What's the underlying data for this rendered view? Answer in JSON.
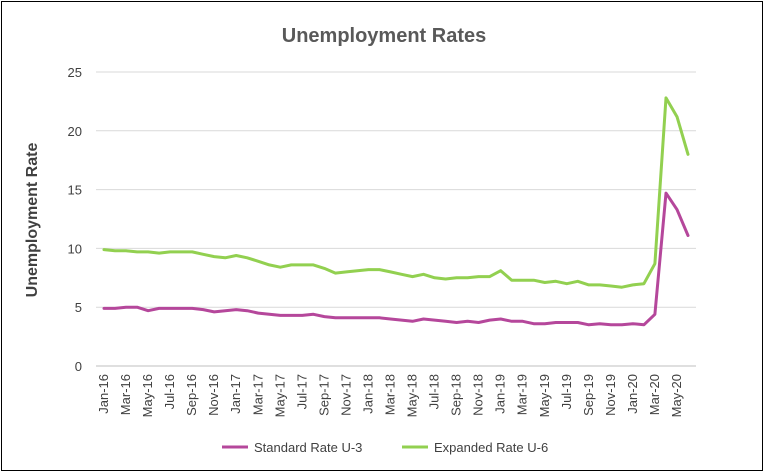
{
  "chart_data": {
    "type": "line",
    "title": "Unemployment Rates",
    "xlabel": "",
    "ylabel": "Unemployment Rate",
    "ylim": [
      0,
      25
    ],
    "yticks": [
      0,
      5,
      10,
      15,
      20,
      25
    ],
    "grid": true,
    "legend_position": "bottom",
    "x": [
      "Jan-16",
      "Feb-16",
      "Mar-16",
      "Apr-16",
      "May-16",
      "Jun-16",
      "Jul-16",
      "Aug-16",
      "Sep-16",
      "Oct-16",
      "Nov-16",
      "Dec-16",
      "Jan-17",
      "Feb-17",
      "Mar-17",
      "Apr-17",
      "May-17",
      "Jun-17",
      "Jul-17",
      "Aug-17",
      "Sep-17",
      "Oct-17",
      "Nov-17",
      "Dec-17",
      "Jan-18",
      "Feb-18",
      "Mar-18",
      "Apr-18",
      "May-18",
      "Jun-18",
      "Jul-18",
      "Aug-18",
      "Sep-18",
      "Oct-18",
      "Nov-18",
      "Dec-18",
      "Jan-19",
      "Feb-19",
      "Mar-19",
      "Apr-19",
      "May-19",
      "Jun-19",
      "Jul-19",
      "Aug-19",
      "Sep-19",
      "Oct-19",
      "Nov-19",
      "Dec-19",
      "Jan-20",
      "Feb-20",
      "Mar-20",
      "Apr-20",
      "May-20",
      "Jun-20"
    ],
    "xtick_labels": [
      "Jan-16",
      "Mar-16",
      "May-16",
      "Jul-16",
      "Sep-16",
      "Nov-16",
      "Jan-17",
      "Mar-17",
      "May-17",
      "Jul-17",
      "Sep-17",
      "Nov-17",
      "Jan-18",
      "Mar-18",
      "May-18",
      "Jul-18",
      "Sep-18",
      "Nov-18",
      "Jan-19",
      "Mar-19",
      "May-19",
      "Jul-19",
      "Sep-19",
      "Nov-19",
      "Jan-20",
      "Mar-20",
      "May-20"
    ],
    "series": [
      {
        "name": "Standard Rate U-3",
        "color": "#b5479b",
        "values": [
          4.9,
          4.9,
          5.0,
          5.0,
          4.7,
          4.9,
          4.9,
          4.9,
          4.9,
          4.8,
          4.6,
          4.7,
          4.8,
          4.7,
          4.5,
          4.4,
          4.3,
          4.3,
          4.3,
          4.4,
          4.2,
          4.1,
          4.1,
          4.1,
          4.1,
          4.1,
          4.0,
          3.9,
          3.8,
          4.0,
          3.9,
          3.8,
          3.7,
          3.8,
          3.7,
          3.9,
          4.0,
          3.8,
          3.8,
          3.6,
          3.6,
          3.7,
          3.7,
          3.7,
          3.5,
          3.6,
          3.5,
          3.5,
          3.6,
          3.5,
          4.4,
          14.7,
          13.3,
          11.1
        ]
      },
      {
        "name": "Expanded Rate U-6",
        "color": "#92d050",
        "values": [
          9.9,
          9.8,
          9.8,
          9.7,
          9.7,
          9.6,
          9.7,
          9.7,
          9.7,
          9.5,
          9.3,
          9.2,
          9.4,
          9.2,
          8.9,
          8.6,
          8.4,
          8.6,
          8.6,
          8.6,
          8.3,
          7.9,
          8.0,
          8.1,
          8.2,
          8.2,
          8.0,
          7.8,
          7.6,
          7.8,
          7.5,
          7.4,
          7.5,
          7.5,
          7.6,
          7.6,
          8.1,
          7.3,
          7.3,
          7.3,
          7.1,
          7.2,
          7.0,
          7.2,
          6.9,
          6.9,
          6.8,
          6.7,
          6.9,
          7.0,
          8.7,
          22.8,
          21.2,
          18.0
        ]
      }
    ]
  }
}
